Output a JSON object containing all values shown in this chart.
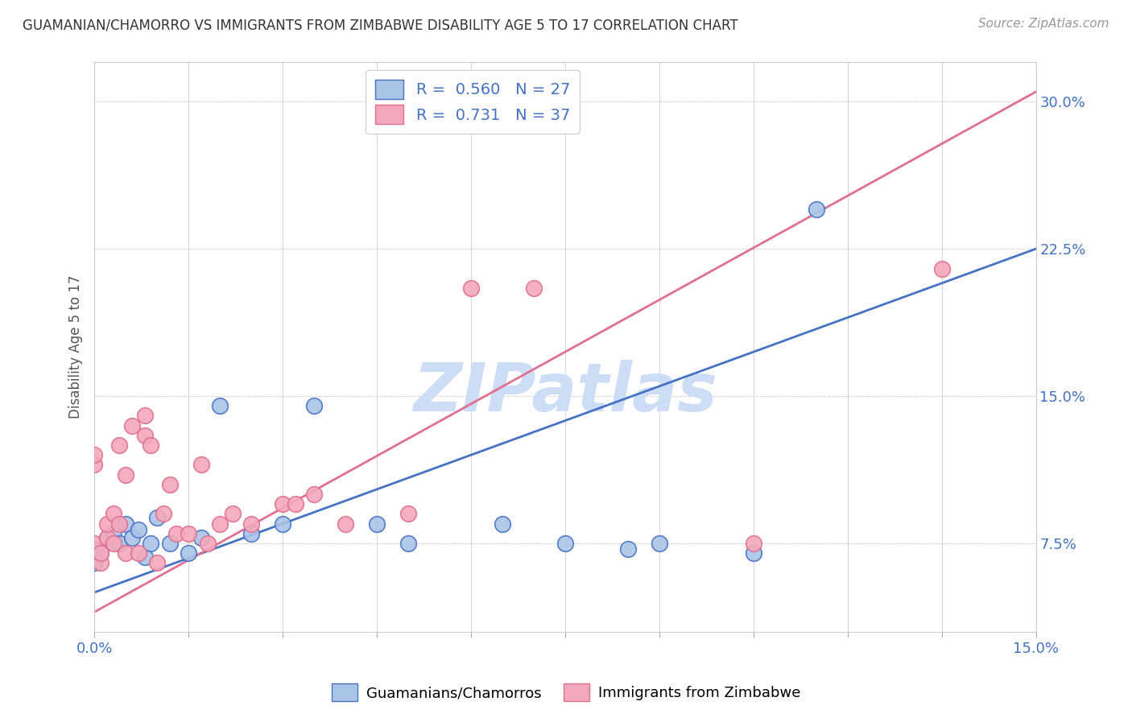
{
  "title": "GUAMANIAN/CHAMORRO VS IMMIGRANTS FROM ZIMBABWE DISABILITY AGE 5 TO 17 CORRELATION CHART",
  "source": "Source: ZipAtlas.com",
  "ylabel": "Disability Age 5 to 17",
  "xlim": [
    0.0,
    15.0
  ],
  "ylim": [
    3.0,
    32.0
  ],
  "yticks": [
    7.5,
    15.0,
    22.5,
    30.0
  ],
  "ytick_labels": [
    "7.5%",
    "15.0%",
    "22.5%",
    "30.0%"
  ],
  "xticks": [
    0.0,
    1.5,
    3.0,
    4.5,
    6.0,
    7.5,
    9.0,
    10.5,
    12.0,
    13.5,
    15.0
  ],
  "blue_R": 0.56,
  "blue_N": 27,
  "pink_R": 0.731,
  "pink_N": 37,
  "blue_label": "Guamanians/Chamorros",
  "pink_label": "Immigrants from Zimbabwe",
  "blue_color": "#aac4e8",
  "pink_color": "#f4a8bc",
  "blue_line_color": "#4472c4",
  "pink_line_color": "#e07090",
  "watermark": "ZIPatlas",
  "watermark_color": "#ccddf5",
  "blue_line_x0": 0.0,
  "blue_line_y0": 5.0,
  "blue_line_x1": 15.0,
  "blue_line_y1": 22.5,
  "pink_line_x0": 0.0,
  "pink_line_y0": 4.0,
  "pink_line_x1": 15.0,
  "pink_line_y1": 30.5,
  "blue_scatter_x": [
    0.0,
    0.0,
    0.1,
    0.2,
    0.3,
    0.4,
    0.5,
    0.6,
    0.7,
    0.8,
    0.9,
    1.0,
    1.2,
    1.5,
    1.7,
    2.0,
    2.5,
    3.0,
    3.5,
    4.5,
    5.0,
    6.5,
    7.5,
    8.5,
    9.0,
    10.5,
    11.5
  ],
  "blue_scatter_y": [
    6.5,
    7.2,
    7.0,
    7.8,
    8.0,
    7.5,
    8.5,
    7.8,
    8.2,
    6.8,
    7.5,
    8.8,
    7.5,
    7.0,
    7.8,
    14.5,
    8.0,
    8.5,
    14.5,
    8.5,
    7.5,
    8.5,
    7.5,
    7.2,
    7.5,
    7.0,
    24.5
  ],
  "pink_scatter_x": [
    0.0,
    0.0,
    0.0,
    0.1,
    0.1,
    0.2,
    0.2,
    0.3,
    0.3,
    0.4,
    0.4,
    0.5,
    0.5,
    0.6,
    0.7,
    0.8,
    0.8,
    0.9,
    1.0,
    1.1,
    1.2,
    1.3,
    1.5,
    1.7,
    1.8,
    2.0,
    2.2,
    2.5,
    3.0,
    3.2,
    3.5,
    4.0,
    5.0,
    6.0,
    7.0,
    10.5,
    13.5
  ],
  "pink_scatter_y": [
    11.5,
    12.0,
    7.5,
    6.5,
    7.0,
    7.8,
    8.5,
    7.5,
    9.0,
    8.5,
    12.5,
    11.0,
    7.0,
    13.5,
    7.0,
    13.0,
    14.0,
    12.5,
    6.5,
    9.0,
    10.5,
    8.0,
    8.0,
    11.5,
    7.5,
    8.5,
    9.0,
    8.5,
    9.5,
    9.5,
    10.0,
    8.5,
    9.0,
    20.5,
    20.5,
    7.5,
    21.5
  ]
}
